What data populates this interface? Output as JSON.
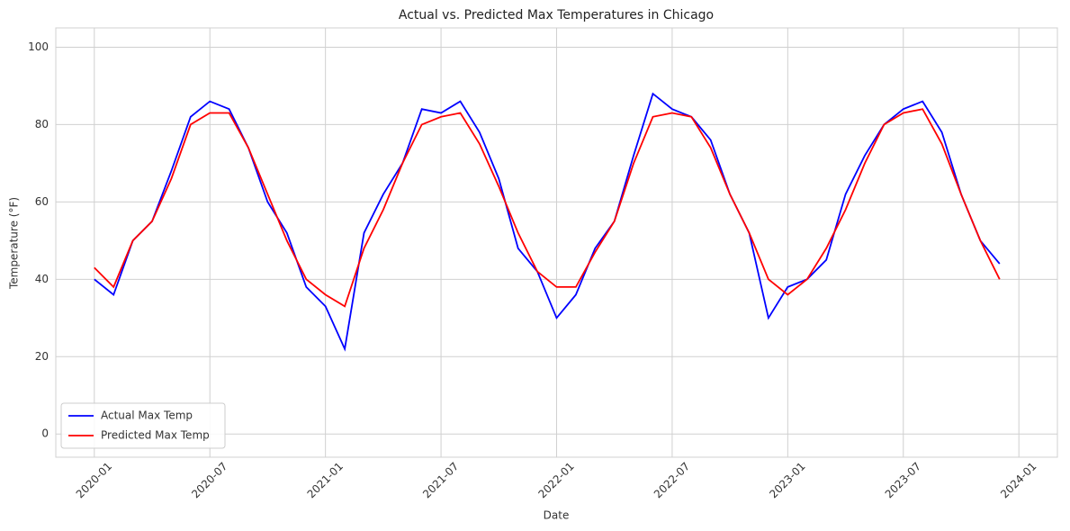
{
  "chart_data": {
    "type": "line",
    "title": "Actual vs. Predicted Max Temperatures in Chicago",
    "x_label": "Date",
    "y_label": "Temperature (°F)",
    "x": [
      "2020-01",
      "2020-02",
      "2020-03",
      "2020-04",
      "2020-05",
      "2020-06",
      "2020-07",
      "2020-08",
      "2020-09",
      "2020-10",
      "2020-11",
      "2020-12",
      "2021-01",
      "2021-02",
      "2021-03",
      "2021-04",
      "2021-05",
      "2021-06",
      "2021-07",
      "2021-08",
      "2021-09",
      "2021-10",
      "2021-11",
      "2021-12",
      "2022-01",
      "2022-02",
      "2022-03",
      "2022-04",
      "2022-05",
      "2022-06",
      "2022-07",
      "2022-08",
      "2022-09",
      "2022-10",
      "2022-11",
      "2022-12",
      "2023-01",
      "2023-02",
      "2023-03",
      "2023-04",
      "2023-05",
      "2023-06",
      "2023-07",
      "2023-08",
      "2023-09",
      "2023-10",
      "2023-11",
      "2023-12"
    ],
    "series": [
      {
        "name": "Actual Max Temp",
        "color": "#0000ff",
        "values": [
          40,
          36,
          50,
          55,
          68,
          82,
          86,
          84,
          74,
          60,
          52,
          38,
          33,
          22,
          52,
          62,
          70,
          84,
          83,
          86,
          78,
          66,
          48,
          42,
          30,
          36,
          48,
          55,
          72,
          88,
          84,
          82,
          76,
          62,
          52,
          30,
          38,
          40,
          45,
          62,
          72,
          80,
          84,
          86,
          78,
          62,
          50,
          44
        ]
      },
      {
        "name": "Predicted Max Temp",
        "color": "#ff0000",
        "values": [
          43,
          38,
          50,
          55,
          66,
          80,
          83,
          83,
          74,
          62,
          50,
          40,
          36,
          33,
          48,
          58,
          70,
          80,
          82,
          83,
          75,
          64,
          52,
          42,
          38,
          38,
          47,
          55,
          70,
          82,
          83,
          82,
          74,
          62,
          52,
          40,
          36,
          40,
          48,
          58,
          70,
          80,
          83,
          84,
          75,
          62,
          50,
          40
        ]
      }
    ],
    "xlim": [
      "2019-11",
      "2024-03"
    ],
    "xticks": [
      "2020-01",
      "2020-07",
      "2021-01",
      "2021-07",
      "2022-01",
      "2022-07",
      "2023-01",
      "2023-07",
      "2024-01"
    ],
    "ylim": [
      -6,
      105
    ],
    "yticks": [
      0,
      20,
      40,
      60,
      80,
      100
    ],
    "grid": true,
    "legend": "lower left"
  }
}
